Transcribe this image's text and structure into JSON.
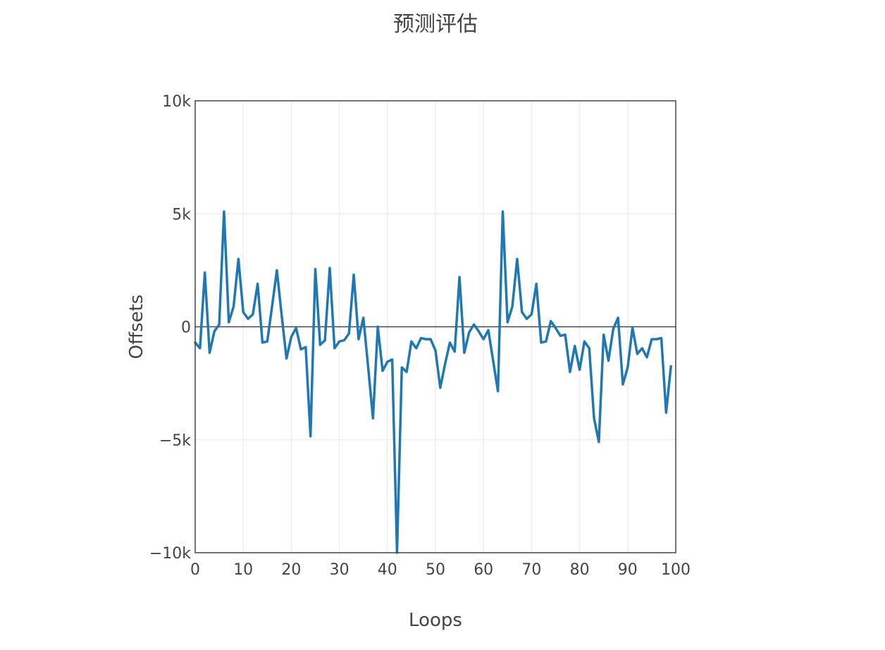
{
  "chart_data": {
    "type": "line",
    "title": "预测评估",
    "xlabel": "Loops",
    "ylabel": "Offsets",
    "xlim": [
      0,
      100
    ],
    "ylim": [
      -10000,
      10000
    ],
    "x_ticks": [
      0,
      10,
      20,
      30,
      40,
      50,
      60,
      70,
      80,
      90,
      100
    ],
    "x_tick_labels": [
      "0",
      "10",
      "20",
      "30",
      "40",
      "50",
      "60",
      "70",
      "80",
      "90",
      "100"
    ],
    "y_ticks": [
      -10000,
      -5000,
      0,
      5000,
      10000
    ],
    "y_tick_labels": [
      "−10k",
      "−5k",
      "0",
      "5k",
      "10k"
    ],
    "grid": true,
    "legend": "none",
    "colors": {
      "line": "#1f77b4",
      "grid": "#eeeeee",
      "zero_line": "#444444",
      "frame": "#444444",
      "text": "#444444"
    },
    "series": [
      {
        "x": [
          0,
          1,
          2,
          3,
          4,
          5,
          6,
          7,
          8,
          9,
          10,
          11,
          12,
          13,
          14,
          15,
          16,
          17,
          18,
          19,
          20,
          21,
          22,
          23,
          24,
          25,
          26,
          27,
          28,
          29,
          30,
          31,
          32,
          33,
          34,
          35,
          36,
          37,
          38,
          39,
          40,
          41,
          42,
          43,
          44,
          45,
          46,
          47,
          48,
          49,
          50,
          51,
          52,
          53,
          54,
          55,
          56,
          57,
          58,
          59,
          60,
          61,
          62,
          63,
          64,
          65,
          66,
          67,
          68,
          69,
          70,
          71,
          72,
          73,
          74,
          75,
          76,
          77,
          78,
          79,
          80,
          81,
          82,
          83,
          84,
          85,
          86,
          87,
          88,
          89,
          90,
          91,
          92,
          93,
          94,
          95,
          96,
          97,
          98,
          99
        ],
        "values": [
          -700,
          -950,
          2400,
          -1150,
          -200,
          100,
          5100,
          200,
          900,
          3000,
          650,
          350,
          550,
          1900,
          -700,
          -650,
          900,
          2500,
          500,
          -1400,
          -450,
          -50,
          -1000,
          -900,
          -4850,
          2550,
          -800,
          -600,
          2600,
          -950,
          -650,
          -600,
          -300,
          2300,
          -550,
          400,
          -1800,
          -4050,
          0,
          -1950,
          -1550,
          -1450,
          -10000,
          -1800,
          -2000,
          -650,
          -950,
          -500,
          -550,
          -550,
          -1050,
          -2700,
          -1650,
          -700,
          -1100,
          2200,
          -1150,
          -250,
          100,
          -200,
          -550,
          -150,
          -1500,
          -2850,
          5100,
          200,
          900,
          3000,
          650,
          350,
          550,
          1900,
          -700,
          -650,
          250,
          -50,
          -400,
          -350,
          -2000,
          -850,
          -1900,
          -650,
          -950,
          -4050,
          -5100,
          -350,
          -1500,
          -100,
          400,
          -2550,
          -1800,
          -50,
          -1200,
          -950,
          -1350,
          -550,
          -550,
          -500,
          -3800,
          -1750
        ]
      }
    ]
  }
}
